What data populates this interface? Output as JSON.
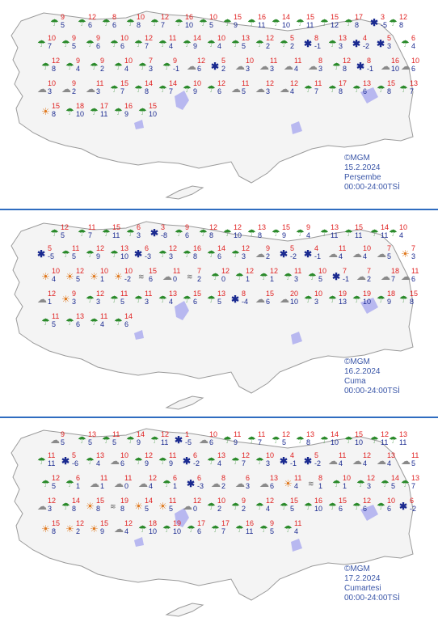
{
  "map": {
    "colors": {
      "land": "#f4f4f4",
      "land_border": "#9a9a9a",
      "lake": "#b8b8f0",
      "rain": "#2a8a2a",
      "snow": "#1a2a90",
      "max_temp": "#e02020",
      "min_temp": "#1a2a90",
      "separator": "#2f6cc0",
      "credit_text": "#3a56a8"
    },
    "legend_note": "Icons: rain = green drops, snow = blue snowflake, cloud = gray cloud, sun = orange"
  },
  "panels": [
    {
      "credit": "©MGM",
      "date": "15.2.2024",
      "day": "Perşembe",
      "time_range": "00:00-24:00TSİ",
      "stations": [
        {
          "icon": "rain",
          "max": "9",
          "min": "5"
        },
        {
          "icon": "rain",
          "max": "12",
          "min": "6"
        },
        {
          "icon": "rain",
          "max": "8",
          "min": "6"
        },
        {
          "icon": "rain",
          "max": "10",
          "min": "8"
        },
        {
          "icon": "rain",
          "max": "12",
          "min": "7"
        },
        {
          "icon": "rain",
          "max": "16",
          "min": "10"
        },
        {
          "icon": "rain",
          "max": "10",
          "min": "5"
        },
        {
          "icon": "rain",
          "max": "15",
          "min": "9"
        },
        {
          "icon": "rain",
          "max": "16",
          "min": "11"
        },
        {
          "icon": "rain",
          "max": "14",
          "min": "10"
        },
        {
          "icon": "rain",
          "max": "15",
          "min": "11"
        },
        {
          "icon": "rain",
          "max": "15",
          "min": "12"
        },
        {
          "icon": "rain",
          "max": "17",
          "min": "8"
        },
        {
          "icon": "snow",
          "max": "3",
          "min": "-5"
        },
        {
          "icon": "rain",
          "max": "12",
          "min": "8"
        },
        {
          "icon": "rain",
          "max": "10",
          "min": "7"
        },
        {
          "icon": "rain",
          "max": "9",
          "min": "5"
        },
        {
          "icon": "rain",
          "max": "9",
          "min": "6"
        },
        {
          "icon": "rain",
          "max": "10",
          "min": "6"
        },
        {
          "icon": "rain",
          "max": "12",
          "min": "7"
        },
        {
          "icon": "rain",
          "max": "11",
          "min": "4"
        },
        {
          "icon": "rain",
          "max": "14",
          "min": "9"
        },
        {
          "icon": "rain",
          "max": "10",
          "min": "4"
        },
        {
          "icon": "rain",
          "max": "13",
          "min": "5"
        },
        {
          "icon": "rain",
          "max": "12",
          "min": "2"
        },
        {
          "icon": "rain",
          "max": "5",
          "min": "2"
        },
        {
          "icon": "snow",
          "max": "8",
          "min": "-1"
        },
        {
          "icon": "rain",
          "max": "13",
          "min": "3"
        },
        {
          "icon": "snow",
          "max": "4",
          "min": "-2"
        },
        {
          "icon": "snow",
          "max": "5",
          "min": "3"
        },
        {
          "icon": "rain",
          "max": "6",
          "min": "4"
        },
        {
          "icon": "rain",
          "max": "12",
          "min": "8"
        },
        {
          "icon": "rain",
          "max": "9",
          "min": "4"
        },
        {
          "icon": "rain",
          "max": "9",
          "min": "2"
        },
        {
          "icon": "rain",
          "max": "10",
          "min": "4"
        },
        {
          "icon": "rain",
          "max": "7",
          "min": "3"
        },
        {
          "icon": "rain",
          "max": "9",
          "min": "-1"
        },
        {
          "icon": "cloud",
          "max": "12",
          "min": "6"
        },
        {
          "icon": "snow",
          "max": "5",
          "min": "2"
        },
        {
          "icon": "cloud",
          "max": "10",
          "min": "3"
        },
        {
          "icon": "cloud",
          "max": "11",
          "min": "3"
        },
        {
          "icon": "cloud",
          "max": "11",
          "min": "4"
        },
        {
          "icon": "cloud",
          "max": "8",
          "min": "3"
        },
        {
          "icon": "rain",
          "max": "12",
          "min": "8"
        },
        {
          "icon": "snow",
          "max": "8",
          "min": "-1"
        },
        {
          "icon": "cloud",
          "max": "16",
          "min": "10"
        },
        {
          "icon": "cloud",
          "max": "10",
          "min": "6"
        },
        {
          "icon": "cloud",
          "max": "10",
          "min": "3"
        },
        {
          "icon": "cloud",
          "max": "9",
          "min": "2"
        },
        {
          "icon": "cloud",
          "max": "11",
          "min": "3"
        },
        {
          "icon": "rain",
          "max": "15",
          "min": "7"
        },
        {
          "icon": "rain",
          "max": "14",
          "min": "8"
        },
        {
          "icon": "rain",
          "max": "14",
          "min": "7"
        },
        {
          "icon": "rain",
          "max": "10",
          "min": "9"
        },
        {
          "icon": "rain",
          "max": "12",
          "min": "6"
        },
        {
          "icon": "cloud",
          "max": "11",
          "min": "5"
        },
        {
          "icon": "cloud",
          "max": "12",
          "min": "3"
        },
        {
          "icon": "cloud",
          "max": "12",
          "min": "4"
        },
        {
          "icon": "rain",
          "max": "11",
          "min": "7"
        },
        {
          "icon": "rain",
          "max": "17",
          "min": "8"
        },
        {
          "icon": "rain",
          "max": "13",
          "min": "6"
        },
        {
          "icon": "rain",
          "max": "15",
          "min": "8"
        },
        {
          "icon": "rain",
          "max": "13",
          "min": "7"
        },
        {
          "icon": "sun",
          "max": "15",
          "min": "8"
        },
        {
          "icon": "rain",
          "max": "18",
          "min": "10"
        },
        {
          "icon": "rain",
          "max": "17",
          "min": "11"
        },
        {
          "icon": "rain",
          "max": "16",
          "min": "9"
        },
        {
          "icon": "rain",
          "max": "15",
          "min": "10"
        }
      ]
    },
    {
      "credit": "©MGM",
      "date": "16.2.2024",
      "day": "Cuma",
      "time_range": "00:00-24:00TSİ",
      "stations": [
        {
          "icon": "rain",
          "max": "12",
          "min": "5"
        },
        {
          "icon": "rain",
          "max": "11",
          "min": "7"
        },
        {
          "icon": "rain",
          "max": "15",
          "min": "11"
        },
        {
          "icon": "rain",
          "max": "6",
          "min": "3"
        },
        {
          "icon": "snow",
          "max": "3",
          "min": "-8"
        },
        {
          "icon": "rain",
          "max": "9",
          "min": "6"
        },
        {
          "icon": "rain",
          "max": "12",
          "min": "8"
        },
        {
          "icon": "rain",
          "max": "12",
          "min": "10"
        },
        {
          "icon": "rain",
          "max": "13",
          "min": "8"
        },
        {
          "icon": "rain",
          "max": "15",
          "min": "9"
        },
        {
          "icon": "rain",
          "max": "9",
          "min": "4"
        },
        {
          "icon": "rain",
          "max": "13",
          "min": "11"
        },
        {
          "icon": "rain",
          "max": "15",
          "min": "11"
        },
        {
          "icon": "rain",
          "max": "14",
          "min": "11"
        },
        {
          "icon": "rain",
          "max": "10",
          "min": "4"
        },
        {
          "icon": "snow",
          "max": "5",
          "min": "-5"
        },
        {
          "icon": "rain",
          "max": "11",
          "min": "5"
        },
        {
          "icon": "rain",
          "max": "12",
          "min": "9"
        },
        {
          "icon": "rain",
          "max": "13",
          "min": "10"
        },
        {
          "icon": "snow",
          "max": "6",
          "min": "-3"
        },
        {
          "icon": "rain",
          "max": "12",
          "min": "3"
        },
        {
          "icon": "rain",
          "max": "16",
          "min": "8"
        },
        {
          "icon": "rain",
          "max": "14",
          "min": "6"
        },
        {
          "icon": "rain",
          "max": "12",
          "min": "3"
        },
        {
          "icon": "cloud",
          "max": "9",
          "min": "2"
        },
        {
          "icon": "snow",
          "max": "5",
          "min": "-2"
        },
        {
          "icon": "snow",
          "max": "4",
          "min": "-1"
        },
        {
          "icon": "cloud",
          "max": "11",
          "min": "4"
        },
        {
          "icon": "cloud",
          "max": "10",
          "min": "4"
        },
        {
          "icon": "cloud",
          "max": "7",
          "min": "5"
        },
        {
          "icon": "sun",
          "max": "7",
          "min": "3"
        },
        {
          "icon": "sun",
          "max": "10",
          "min": "4"
        },
        {
          "icon": "sun",
          "max": "12",
          "min": "5"
        },
        {
          "icon": "sun",
          "max": "10",
          "min": "1"
        },
        {
          "icon": "sun",
          "max": "10",
          "min": "-2"
        },
        {
          "icon": "fog",
          "max": "15",
          "min": "6"
        },
        {
          "icon": "cloud",
          "max": "11",
          "min": "0"
        },
        {
          "icon": "fog",
          "max": "7",
          "min": "2"
        },
        {
          "icon": "rain",
          "max": "12",
          "min": "0"
        },
        {
          "icon": "rain",
          "max": "12",
          "min": "1"
        },
        {
          "icon": "rain",
          "max": "12",
          "min": "1"
        },
        {
          "icon": "rain",
          "max": "11",
          "min": "3"
        },
        {
          "icon": "rain",
          "max": "10",
          "min": "5"
        },
        {
          "icon": "snow",
          "max": "7",
          "min": "-1"
        },
        {
          "icon": "cloud",
          "max": "7",
          "min": "2"
        },
        {
          "icon": "cloud",
          "max": "18",
          "min": "7"
        },
        {
          "icon": "cloud",
          "max": "11",
          "min": "6"
        },
        {
          "icon": "cloud",
          "max": "12",
          "min": "1"
        },
        {
          "icon": "sun",
          "max": "9",
          "min": "3"
        },
        {
          "icon": "rain",
          "max": "12",
          "min": "3"
        },
        {
          "icon": "rain",
          "max": "11",
          "min": "5"
        },
        {
          "icon": "rain",
          "max": "11",
          "min": "3"
        },
        {
          "icon": "rain",
          "max": "13",
          "min": "4"
        },
        {
          "icon": "rain",
          "max": "15",
          "min": "6"
        },
        {
          "icon": "rain",
          "max": "13",
          "min": "5"
        },
        {
          "icon": "snow",
          "max": "8",
          "min": "-4"
        },
        {
          "icon": "cloud",
          "max": "15",
          "min": "6"
        },
        {
          "icon": "cloud",
          "max": "20",
          "min": "10"
        },
        {
          "icon": "rain",
          "max": "10",
          "min": "3"
        },
        {
          "icon": "rain",
          "max": "19",
          "min": "13"
        },
        {
          "icon": "rain",
          "max": "19",
          "min": "10"
        },
        {
          "icon": "rain",
          "max": "18",
          "min": "9"
        },
        {
          "icon": "rain",
          "max": "15",
          "min": "8"
        },
        {
          "icon": "rain",
          "max": "11",
          "min": "5"
        },
        {
          "icon": "rain",
          "max": "13",
          "min": "6"
        },
        {
          "icon": "rain",
          "max": "11",
          "min": "4"
        },
        {
          "icon": "rain",
          "max": "14",
          "min": "6"
        }
      ]
    },
    {
      "credit": "©MGM",
      "date": "17.2.2024",
      "day": "Cumartesi",
      "time_range": "00:00-24:00TSİ",
      "stations": [
        {
          "icon": "cloud",
          "max": "9",
          "min": "5"
        },
        {
          "icon": "rain",
          "max": "13",
          "min": "5"
        },
        {
          "icon": "rain",
          "max": "11",
          "min": "5"
        },
        {
          "icon": "rain",
          "max": "14",
          "min": "9"
        },
        {
          "icon": "rain",
          "max": "12",
          "min": "11"
        },
        {
          "icon": "snow",
          "max": "1",
          "min": "-5"
        },
        {
          "icon": "cloud",
          "max": "10",
          "min": "6"
        },
        {
          "icon": "rain",
          "max": "11",
          "min": "9"
        },
        {
          "icon": "rain",
          "max": "11",
          "min": "7"
        },
        {
          "icon": "rain",
          "max": "12",
          "min": "5"
        },
        {
          "icon": "rain",
          "max": "13",
          "min": "8"
        },
        {
          "icon": "rain",
          "max": "14",
          "min": "10"
        },
        {
          "icon": "rain",
          "max": "15",
          "min": "10"
        },
        {
          "icon": "rain",
          "max": "12",
          "min": "11"
        },
        {
          "icon": "rain",
          "max": "13",
          "min": "11"
        },
        {
          "icon": "rain",
          "max": "11",
          "min": "11"
        },
        {
          "icon": "snow",
          "max": "5",
          "min": "-6"
        },
        {
          "icon": "rain",
          "max": "13",
          "min": "4"
        },
        {
          "icon": "cloud",
          "max": "10",
          "min": "6"
        },
        {
          "icon": "rain",
          "max": "12",
          "min": "9"
        },
        {
          "icon": "rain",
          "max": "11",
          "min": "9"
        },
        {
          "icon": "snow",
          "max": "6",
          "min": "-2"
        },
        {
          "icon": "rain",
          "max": "13",
          "min": "4"
        },
        {
          "icon": "rain",
          "max": "12",
          "min": "7"
        },
        {
          "icon": "rain",
          "max": "10",
          "min": "3"
        },
        {
          "icon": "snow",
          "max": "4",
          "min": "-1"
        },
        {
          "icon": "snow",
          "max": "5",
          "min": "-2"
        },
        {
          "icon": "cloud",
          "max": "11",
          "min": "4"
        },
        {
          "icon": "cloud",
          "max": "12",
          "min": "4"
        },
        {
          "icon": "cloud",
          "max": "13",
          "min": "4"
        },
        {
          "icon": "cloud",
          "max": "11",
          "min": "5"
        },
        {
          "icon": "rain",
          "max": "12",
          "min": "5"
        },
        {
          "icon": "rain",
          "max": "6",
          "min": "1"
        },
        {
          "icon": "cloud",
          "max": "11",
          "min": "1"
        },
        {
          "icon": "cloud",
          "max": "11",
          "min": "0"
        },
        {
          "icon": "cloud",
          "max": "12",
          "min": "4"
        },
        {
          "icon": "rain",
          "max": "6",
          "min": "1"
        },
        {
          "icon": "snow",
          "max": "6",
          "min": "-3"
        },
        {
          "icon": "cloud",
          "max": "8",
          "min": "2"
        },
        {
          "icon": "cloud",
          "max": "6",
          "min": "3"
        },
        {
          "icon": "cloud",
          "max": "13",
          "min": "6"
        },
        {
          "icon": "sun",
          "max": "11",
          "min": "4"
        },
        {
          "icon": "fog",
          "max": "8",
          "min": "1"
        },
        {
          "icon": "rain",
          "max": "10",
          "min": "1"
        },
        {
          "icon": "rain",
          "max": "12",
          "min": "3"
        },
        {
          "icon": "rain",
          "max": "14",
          "min": "5"
        },
        {
          "icon": "rain",
          "max": "13",
          "min": "7"
        },
        {
          "icon": "cloud",
          "max": "12",
          "min": "3"
        },
        {
          "icon": "rain",
          "max": "14",
          "min": "8"
        },
        {
          "icon": "sun",
          "max": "15",
          "min": "8"
        },
        {
          "icon": "fog",
          "max": "19",
          "min": "8"
        },
        {
          "icon": "sun",
          "max": "14",
          "min": "5"
        },
        {
          "icon": "sun",
          "max": "11",
          "min": "5"
        },
        {
          "icon": "cloud",
          "max": "12",
          "min": "0"
        },
        {
          "icon": "rain",
          "max": "10",
          "min": "2"
        },
        {
          "icon": "rain",
          "max": "9",
          "min": "2"
        },
        {
          "icon": "rain",
          "max": "12",
          "min": "4"
        },
        {
          "icon": "rain",
          "max": "15",
          "min": "5"
        },
        {
          "icon": "rain",
          "max": "16",
          "min": "10"
        },
        {
          "icon": "rain",
          "max": "15",
          "min": "6"
        },
        {
          "icon": "rain",
          "max": "12",
          "min": "6"
        },
        {
          "icon": "rain",
          "max": "10",
          "min": "6"
        },
        {
          "icon": "snow",
          "max": "6",
          "min": "-2"
        },
        {
          "icon": "sun",
          "max": "15",
          "min": "8"
        },
        {
          "icon": "sun",
          "max": "12",
          "min": "2"
        },
        {
          "icon": "sun",
          "max": "15",
          "min": "9"
        },
        {
          "icon": "cloud",
          "max": "12",
          "min": "4"
        },
        {
          "icon": "rain",
          "max": "18",
          "min": "10"
        },
        {
          "icon": "rain",
          "max": "19",
          "min": "10"
        },
        {
          "icon": "rain",
          "max": "17",
          "min": "6"
        },
        {
          "icon": "rain",
          "max": "17",
          "min": "7"
        },
        {
          "icon": "rain",
          "max": "16",
          "min": "11"
        },
        {
          "icon": "rain",
          "max": "9",
          "min": "5"
        },
        {
          "icon": "rain",
          "max": "11",
          "min": "4"
        }
      ]
    }
  ]
}
